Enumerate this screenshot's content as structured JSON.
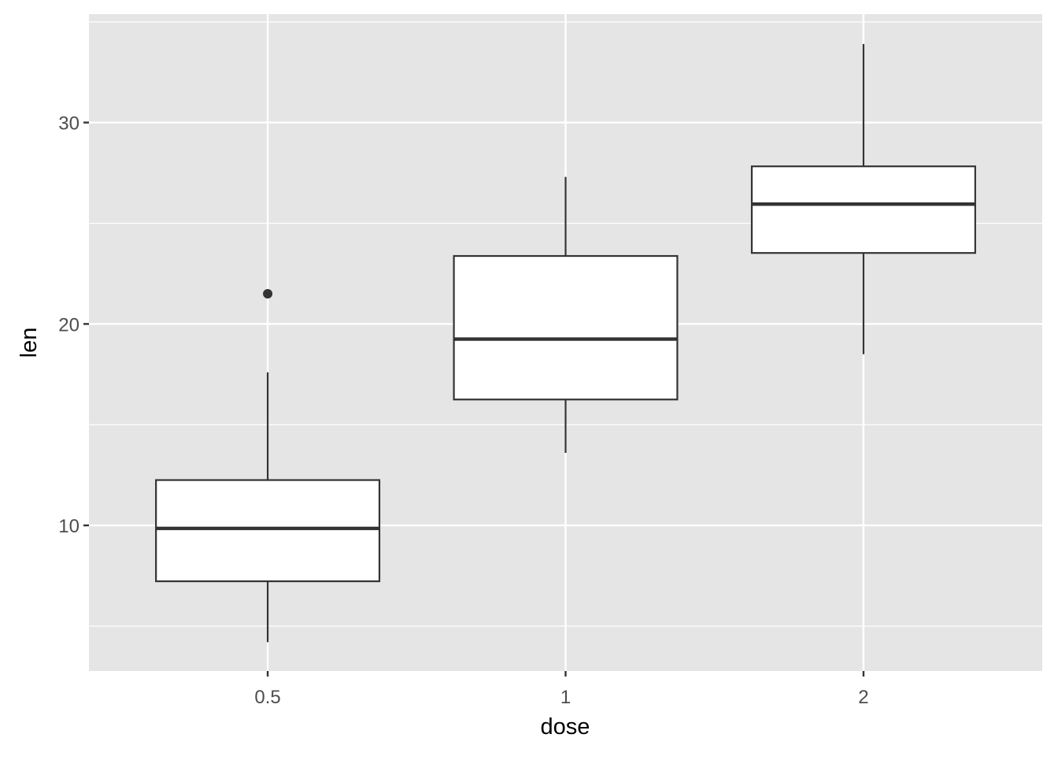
{
  "chart_data": {
    "type": "boxplot",
    "title": "",
    "xlabel": "dose",
    "ylabel": "len",
    "categories": [
      "0.5",
      "1",
      "2"
    ],
    "boxes": [
      {
        "category": "0.5",
        "min": 4.2,
        "q1": 7.225,
        "median": 9.85,
        "q3": 12.25,
        "max": 17.6,
        "outliers": [
          21.5
        ]
      },
      {
        "category": "1",
        "min": 13.6,
        "q1": 16.25,
        "median": 19.25,
        "q3": 23.375,
        "max": 27.3,
        "outliers": []
      },
      {
        "category": "2",
        "min": 18.5,
        "q1": 23.525,
        "median": 25.95,
        "q3": 27.825,
        "max": 33.9,
        "outliers": []
      }
    ],
    "ylim": [
      2.77,
      35.38
    ],
    "yticks": [
      10,
      20,
      30
    ],
    "yminor": [
      5,
      15,
      25,
      35
    ],
    "grid": true,
    "colors": {
      "panel": "#e5e5e5",
      "grid": "#ffffff",
      "box_fill": "#ffffff",
      "box_line": "#333333",
      "text": "#4d4d4d"
    }
  }
}
